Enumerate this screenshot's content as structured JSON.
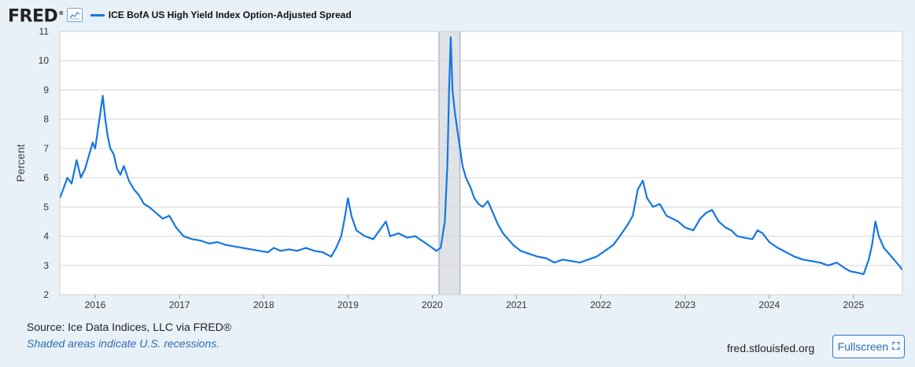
{
  "logo": {
    "text": "FRED",
    "reg": "®"
  },
  "legend": {
    "label": "ICE BofA US High Yield Index Option-Adjusted Spread",
    "icon": "fred-chart-icon"
  },
  "footer": {
    "source": "Source: Ice Data Indices, LLC via FRED®",
    "recession_note": "Shaded areas indicate U.S. recessions.",
    "site": "fred.stlouisfed.org",
    "fullscreen_label": "Fullscreen",
    "fullscreen_icon": "expand-icon"
  },
  "colors": {
    "line": "#1477e1",
    "recession": "#dfe2e6",
    "grid": "#d6d6d6",
    "background": "#e9f1f8"
  },
  "chart_data": {
    "type": "line",
    "title": "ICE BofA US High Yield Index Option-Adjusted Spread",
    "xlabel": "",
    "ylabel": "Percent",
    "ylim": [
      2,
      11
    ],
    "yticks": [
      2,
      3,
      4,
      5,
      6,
      7,
      8,
      9,
      10,
      11
    ],
    "xlim": [
      2015.58,
      2025.58
    ],
    "xticks": [
      "2016",
      "2017",
      "2018",
      "2019",
      "2020",
      "2021",
      "2022",
      "2023",
      "2024",
      "2025"
    ],
    "grid": true,
    "recessions": [
      [
        2020.08,
        2020.33
      ]
    ],
    "series": [
      {
        "name": "ICE BofA US High Yield Index Option-Adjusted Spread",
        "x": [
          2015.58,
          2015.62,
          2015.67,
          2015.72,
          2015.78,
          2015.83,
          2015.88,
          2015.92,
          2015.97,
          2016.0,
          2016.03,
          2016.06,
          2016.09,
          2016.12,
          2016.15,
          2016.18,
          2016.22,
          2016.26,
          2016.3,
          2016.34,
          2016.4,
          2016.46,
          2016.52,
          2016.58,
          2016.64,
          2016.72,
          2016.8,
          2016.88,
          2016.96,
          2017.05,
          2017.15,
          2017.25,
          2017.35,
          2017.45,
          2017.55,
          2017.65,
          2017.75,
          2017.85,
          2017.95,
          2018.05,
          2018.12,
          2018.2,
          2018.3,
          2018.4,
          2018.5,
          2018.6,
          2018.7,
          2018.8,
          2018.86,
          2018.92,
          2018.96,
          2019.0,
          2019.04,
          2019.1,
          2019.2,
          2019.3,
          2019.4,
          2019.45,
          2019.5,
          2019.6,
          2019.7,
          2019.8,
          2019.9,
          2020.0,
          2020.05,
          2020.1,
          2020.15,
          2020.18,
          2020.2,
          2020.22,
          2020.24,
          2020.27,
          2020.3,
          2020.33,
          2020.36,
          2020.4,
          2020.45,
          2020.5,
          2020.55,
          2020.6,
          2020.66,
          2020.72,
          2020.78,
          2020.84,
          2020.9,
          2020.96,
          2021.05,
          2021.15,
          2021.25,
          2021.35,
          2021.45,
          2021.55,
          2021.65,
          2021.75,
          2021.85,
          2021.95,
          2022.05,
          2022.15,
          2022.25,
          2022.32,
          2022.38,
          2022.44,
          2022.5,
          2022.55,
          2022.62,
          2022.7,
          2022.78,
          2022.85,
          2022.92,
          2023.0,
          2023.1,
          2023.18,
          2023.25,
          2023.32,
          2023.4,
          2023.48,
          2023.55,
          2023.62,
          2023.7,
          2023.8,
          2023.86,
          2023.92,
          2024.0,
          2024.1,
          2024.2,
          2024.3,
          2024.4,
          2024.5,
          2024.6,
          2024.7,
          2024.8,
          2024.9,
          2024.96,
          2025.05,
          2025.12,
          2025.18,
          2025.22,
          2025.26,
          2025.3,
          2025.36,
          2025.42,
          2025.48,
          2025.54,
          2025.58
        ],
        "values": [
          5.3,
          5.6,
          6.0,
          5.8,
          6.6,
          6.0,
          6.3,
          6.7,
          7.2,
          7.0,
          7.6,
          8.2,
          8.8,
          8.0,
          7.4,
          7.0,
          6.8,
          6.3,
          6.1,
          6.4,
          5.9,
          5.6,
          5.4,
          5.1,
          5.0,
          4.8,
          4.6,
          4.7,
          4.3,
          4.0,
          3.9,
          3.85,
          3.75,
          3.8,
          3.7,
          3.65,
          3.6,
          3.55,
          3.5,
          3.45,
          3.6,
          3.5,
          3.55,
          3.5,
          3.6,
          3.5,
          3.45,
          3.3,
          3.6,
          4.0,
          4.6,
          5.3,
          4.7,
          4.2,
          4.0,
          3.9,
          4.3,
          4.5,
          4.0,
          4.1,
          3.95,
          4.0,
          3.8,
          3.6,
          3.5,
          3.6,
          4.5,
          6.5,
          9.0,
          10.8,
          9.0,
          8.2,
          7.6,
          7.0,
          6.4,
          6.0,
          5.7,
          5.3,
          5.1,
          5.0,
          5.2,
          4.8,
          4.4,
          4.1,
          3.9,
          3.7,
          3.5,
          3.4,
          3.3,
          3.25,
          3.1,
          3.2,
          3.15,
          3.1,
          3.2,
          3.3,
          3.5,
          3.7,
          4.1,
          4.4,
          4.7,
          5.6,
          5.9,
          5.3,
          5.0,
          5.1,
          4.7,
          4.6,
          4.5,
          4.3,
          4.2,
          4.6,
          4.8,
          4.9,
          4.5,
          4.3,
          4.2,
          4.0,
          3.95,
          3.9,
          4.2,
          4.1,
          3.8,
          3.6,
          3.45,
          3.3,
          3.2,
          3.15,
          3.1,
          3.0,
          3.1,
          2.9,
          2.8,
          2.75,
          2.7,
          3.2,
          3.7,
          4.5,
          4.0,
          3.6,
          3.4,
          3.2,
          3.0,
          2.85
        ]
      }
    ]
  }
}
